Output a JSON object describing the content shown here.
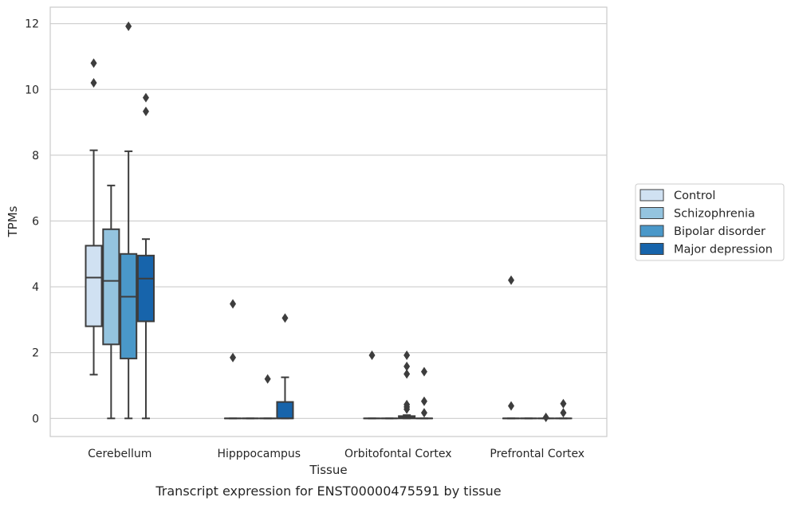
{
  "caption": "Transcript expression for ENST00000475591 by tissue",
  "chart_data": {
    "type": "box",
    "title": "",
    "xlabel": "Tissue",
    "ylabel": "TPMs",
    "ylim": [
      -0.55,
      12.5
    ],
    "yticks": [
      0,
      2,
      4,
      6,
      8,
      10,
      12
    ],
    "grid": "horizontal",
    "legend_position": "right",
    "categories": [
      "Cerebellum",
      "Hipppocampus",
      "Orbitofontal Cortex",
      "Prefrontal Cortex"
    ],
    "series": [
      {
        "name": "Control",
        "color": "#d0e1f2",
        "boxes": [
          {
            "q1": 2.8,
            "median": 4.28,
            "q3": 5.25,
            "whislo": 1.33,
            "whishi": 8.15,
            "fliers": [
              10.2,
              10.8
            ]
          },
          {
            "q1": 0,
            "median": 0,
            "q3": 0,
            "whislo": 0,
            "whishi": 0,
            "fliers": [
              1.85,
              3.48
            ]
          },
          {
            "q1": 0,
            "median": 0,
            "q3": 0,
            "whislo": 0,
            "whishi": 0,
            "fliers": [
              1.92
            ]
          },
          {
            "q1": 0,
            "median": 0,
            "q3": 0,
            "whislo": 0,
            "whishi": 0,
            "fliers": [
              0.38,
              4.2
            ]
          }
        ]
      },
      {
        "name": "Schizophrenia",
        "color": "#94c4df",
        "boxes": [
          {
            "q1": 2.25,
            "median": 4.18,
            "q3": 5.75,
            "whislo": 0,
            "whishi": 7.08,
            "fliers": []
          },
          {
            "q1": 0,
            "median": 0,
            "q3": 0,
            "whislo": 0,
            "whishi": 0,
            "fliers": []
          },
          {
            "q1": 0,
            "median": 0,
            "q3": 0,
            "whislo": 0,
            "whishi": 0,
            "fliers": []
          },
          {
            "q1": 0,
            "median": 0,
            "q3": 0,
            "whislo": 0,
            "whishi": 0,
            "fliers": []
          }
        ]
      },
      {
        "name": "Bipolar disorder",
        "color": "#4a98c9",
        "boxes": [
          {
            "q1": 1.82,
            "median": 3.7,
            "q3": 5.0,
            "whislo": 0,
            "whishi": 8.12,
            "fliers": [
              11.92
            ]
          },
          {
            "q1": 0,
            "median": 0,
            "q3": 0,
            "whislo": 0,
            "whishi": 0,
            "fliers": [
              1.2
            ]
          },
          {
            "q1": 0,
            "median": 0.03,
            "q3": 0.07,
            "whislo": 0,
            "whishi": 0.1,
            "fliers": [
              0.28,
              0.35,
              0.42,
              1.35,
              1.58,
              1.92
            ]
          },
          {
            "q1": 0,
            "median": 0,
            "q3": 0,
            "whislo": 0,
            "whishi": 0,
            "fliers": [
              0.03
            ]
          }
        ]
      },
      {
        "name": "Major depression",
        "color": "#1764ab",
        "boxes": [
          {
            "q1": 2.95,
            "median": 4.25,
            "q3": 4.95,
            "whislo": 0,
            "whishi": 5.45,
            "fliers": [
              9.33,
              9.75
            ]
          },
          {
            "q1": 0,
            "median": 0,
            "q3": 0.5,
            "whislo": 0,
            "whishi": 1.25,
            "fliers": [
              3.05
            ]
          },
          {
            "q1": 0,
            "median": 0,
            "q3": 0,
            "whislo": 0,
            "whishi": 0,
            "fliers": [
              0.17,
              0.52,
              1.42
            ]
          },
          {
            "q1": 0,
            "median": 0,
            "q3": 0,
            "whislo": 0,
            "whishi": 0,
            "fliers": [
              0.17,
              0.45
            ]
          }
        ]
      }
    ]
  }
}
